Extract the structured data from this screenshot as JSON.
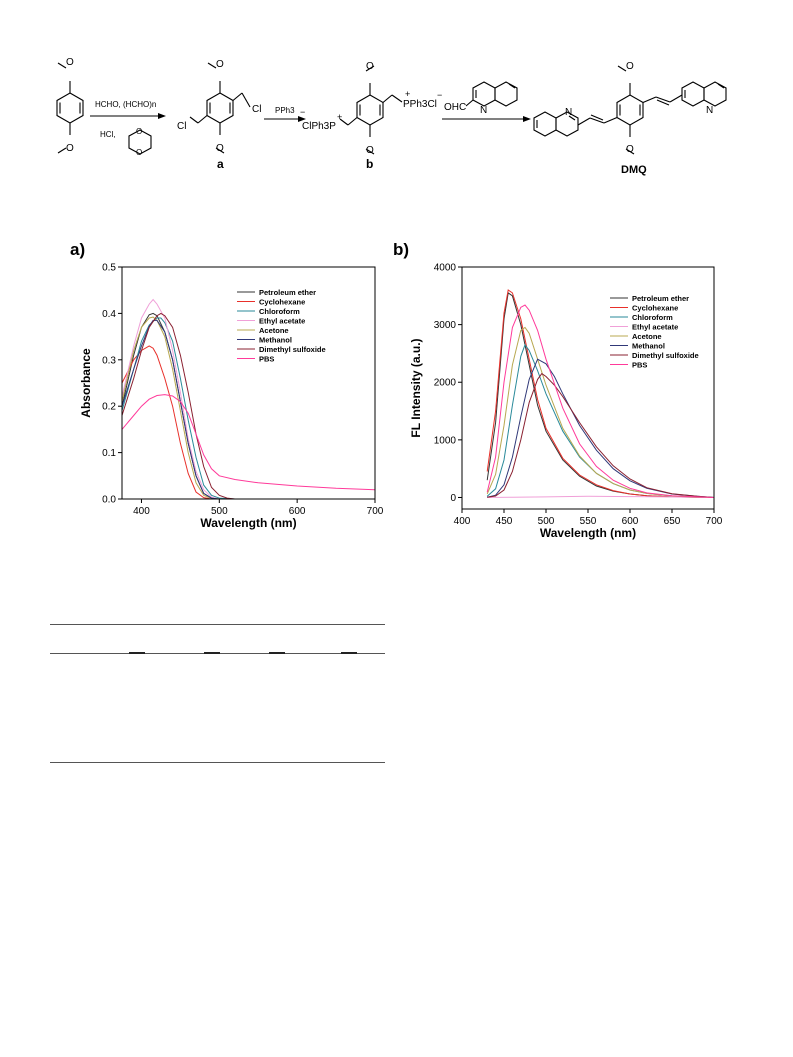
{
  "scheme": {
    "step1_reagent_top": "HCHO, (HCHO)n",
    "step1_reagent_bottom": "HCl,",
    "step2_reagent": "PPh3",
    "compound_a_label": "a",
    "compound_b_label": "b",
    "product_label": "DMQ",
    "cl_label": "Cl",
    "o_label": "O",
    "n_label": "N",
    "ohc_label": "OHC",
    "b_left_group": "ClPh3P",
    "b_right_group": "PPh3Cl",
    "plus": "+",
    "minus": "−"
  },
  "figure_a_label": "a)",
  "figure_b_label": "b)",
  "colors": {
    "petroleum_ether": "#333333",
    "cyclohexane": "#e8302a",
    "chloroform": "#2a8a9a",
    "ethyl_acetate": "#f0a0d8",
    "acetone": "#b8a850",
    "methanol": "#303878",
    "dimethyl_sulfoxide": "#8a2030",
    "pbs": "#ff3a9a"
  },
  "chart_data": [
    {
      "type": "line",
      "xlabel": "Wavelength (nm)",
      "ylabel": "Absorbance",
      "xlim": [
        375,
        700
      ],
      "ylim": [
        0,
        0.5
      ],
      "xticks": [
        400,
        500,
        600,
        700
      ],
      "yticks": [
        0.0,
        0.1,
        0.2,
        0.3,
        0.4,
        0.5
      ],
      "ytick_labels": [
        "0.0",
        "0.1",
        "0.2",
        "0.3",
        "0.4",
        "0.5"
      ],
      "legend_placement": "top-right",
      "series": [
        {
          "name": "Petroleum ether",
          "color_key": "petroleum_ether",
          "x": [
            375,
            390,
            400,
            410,
            415,
            420,
            430,
            440,
            450,
            460,
            470,
            480,
            490,
            500,
            520,
            700
          ],
          "y": [
            0.2,
            0.31,
            0.37,
            0.397,
            0.4,
            0.395,
            0.36,
            0.3,
            0.21,
            0.12,
            0.05,
            0.012,
            0.002,
            0.0,
            0.0,
            0.0
          ]
        },
        {
          "name": "Cyclohexane",
          "color_key": "cyclohexane",
          "x": [
            375,
            390,
            400,
            410,
            415,
            420,
            430,
            440,
            450,
            460,
            470,
            480,
            490,
            500,
            520,
            700
          ],
          "y": [
            0.25,
            0.3,
            0.32,
            0.33,
            0.325,
            0.31,
            0.26,
            0.2,
            0.12,
            0.055,
            0.015,
            0.003,
            0.0,
            0.0,
            0.0,
            0.0
          ]
        },
        {
          "name": "Chloroform",
          "color_key": "chloroform",
          "x": [
            375,
            390,
            400,
            410,
            420,
            425,
            430,
            440,
            450,
            460,
            470,
            480,
            490,
            500,
            520,
            700
          ],
          "y": [
            0.19,
            0.28,
            0.34,
            0.375,
            0.39,
            0.39,
            0.38,
            0.34,
            0.26,
            0.17,
            0.09,
            0.03,
            0.008,
            0.002,
            0.0,
            0.0
          ]
        },
        {
          "name": "Ethyl acetate",
          "color_key": "ethyl_acetate",
          "x": [
            375,
            390,
            400,
            410,
            415,
            420,
            430,
            440,
            450,
            460,
            470,
            480,
            490,
            500,
            520,
            700
          ],
          "y": [
            0.22,
            0.33,
            0.39,
            0.42,
            0.43,
            0.42,
            0.39,
            0.32,
            0.23,
            0.13,
            0.06,
            0.02,
            0.004,
            0.0,
            0.0,
            0.0
          ]
        },
        {
          "name": "Acetone",
          "color_key": "acetone",
          "x": [
            375,
            390,
            400,
            410,
            415,
            420,
            430,
            440,
            450,
            460,
            470,
            480,
            490,
            500,
            520,
            700
          ],
          "y": [
            0.21,
            0.32,
            0.37,
            0.39,
            0.392,
            0.385,
            0.35,
            0.28,
            0.19,
            0.1,
            0.035,
            0.008,
            0.001,
            0.0,
            0.0,
            0.0
          ]
        },
        {
          "name": "Methanol",
          "color_key": "methanol",
          "x": [
            375,
            390,
            400,
            410,
            415,
            420,
            430,
            440,
            450,
            460,
            470,
            480,
            490,
            500,
            520,
            700
          ],
          "y": [
            0.2,
            0.28,
            0.33,
            0.372,
            0.385,
            0.385,
            0.36,
            0.3,
            0.21,
            0.12,
            0.05,
            0.012,
            0.002,
            0.0,
            0.0,
            0.0
          ]
        },
        {
          "name": "Dimethyl sulfoxide",
          "color_key": "dimethyl_sulfoxide",
          "x": [
            375,
            390,
            400,
            410,
            420,
            425,
            430,
            440,
            450,
            460,
            470,
            480,
            490,
            500,
            510,
            520,
            700
          ],
          "y": [
            0.18,
            0.26,
            0.32,
            0.37,
            0.395,
            0.4,
            0.395,
            0.37,
            0.31,
            0.23,
            0.14,
            0.07,
            0.025,
            0.008,
            0.002,
            0.0,
            0.0
          ]
        },
        {
          "name": "PBS",
          "color_key": "pbs",
          "x": [
            375,
            390,
            400,
            410,
            420,
            430,
            440,
            450,
            460,
            470,
            480,
            490,
            500,
            520,
            550,
            600,
            650,
            700
          ],
          "y": [
            0.15,
            0.18,
            0.2,
            0.215,
            0.223,
            0.225,
            0.222,
            0.21,
            0.185,
            0.14,
            0.095,
            0.065,
            0.05,
            0.042,
            0.035,
            0.028,
            0.023,
            0.02
          ]
        }
      ]
    },
    {
      "type": "line",
      "xlabel": "Wavelength (nm)",
      "ylabel": "FL Intensity (a.u.)",
      "xlim": [
        400,
        700
      ],
      "ylim": [
        -200,
        4000
      ],
      "xticks": [
        400,
        450,
        500,
        550,
        600,
        650,
        700
      ],
      "yticks": [
        0,
        1000,
        2000,
        3000,
        4000
      ],
      "legend_placement": "top-right",
      "series": [
        {
          "name": "Petroleum ether",
          "color_key": "petroleum_ether",
          "x": [
            430,
            440,
            450,
            455,
            460,
            470,
            480,
            490,
            500,
            520,
            540,
            560,
            580,
            600,
            620,
            650,
            680,
            700
          ],
          "y": [
            300,
            1300,
            3100,
            3550,
            3500,
            3000,
            2300,
            1600,
            1150,
            650,
            370,
            200,
            110,
            60,
            30,
            10,
            5,
            0
          ]
        },
        {
          "name": "Cyclohexane",
          "color_key": "cyclohexane",
          "x": [
            430,
            440,
            450,
            455,
            460,
            470,
            480,
            490,
            500,
            520,
            540,
            560,
            580,
            600,
            620,
            650,
            680,
            700
          ],
          "y": [
            450,
            1500,
            3200,
            3600,
            3550,
            3100,
            2400,
            1700,
            1200,
            680,
            390,
            220,
            120,
            60,
            30,
            10,
            5,
            0
          ]
        },
        {
          "name": "Chloroform",
          "color_key": "chloroform",
          "x": [
            430,
            440,
            450,
            460,
            470,
            475,
            480,
            490,
            500,
            520,
            540,
            560,
            580,
            600,
            620,
            650,
            680,
            700
          ],
          "y": [
            20,
            150,
            650,
            1600,
            2450,
            2650,
            2550,
            2200,
            1800,
            1150,
            700,
            420,
            240,
            130,
            70,
            25,
            8,
            0
          ]
        },
        {
          "name": "Ethyl acetate",
          "color_key": "ethyl_acetate",
          "x": [
            430,
            460,
            500,
            550,
            600,
            650,
            700
          ],
          "y": [
            0,
            5,
            10,
            20,
            15,
            8,
            0
          ]
        },
        {
          "name": "Acetone",
          "color_key": "acetone",
          "x": [
            430,
            440,
            450,
            460,
            470,
            475,
            480,
            490,
            500,
            520,
            540,
            560,
            580,
            600,
            620,
            650,
            680,
            700
          ],
          "y": [
            60,
            400,
            1250,
            2300,
            2900,
            2950,
            2850,
            2400,
            1950,
            1200,
            720,
            420,
            240,
            130,
            70,
            25,
            8,
            0
          ]
        },
        {
          "name": "Methanol",
          "color_key": "methanol",
          "x": [
            430,
            440,
            450,
            460,
            470,
            480,
            490,
            500,
            510,
            520,
            540,
            560,
            580,
            600,
            620,
            650,
            680,
            700
          ],
          "y": [
            5,
            40,
            220,
            700,
            1400,
            2050,
            2400,
            2320,
            2100,
            1800,
            1250,
            820,
            500,
            290,
            160,
            60,
            20,
            0
          ]
        },
        {
          "name": "Dimethyl sulfoxide",
          "color_key": "dimethyl_sulfoxide",
          "x": [
            430,
            440,
            450,
            460,
            470,
            480,
            490,
            495,
            500,
            510,
            520,
            540,
            560,
            580,
            600,
            620,
            650,
            680,
            700
          ],
          "y": [
            3,
            25,
            130,
            450,
            1000,
            1650,
            2050,
            2150,
            2100,
            1950,
            1750,
            1300,
            880,
            550,
            320,
            170,
            65,
            20,
            0
          ]
        },
        {
          "name": "PBS",
          "color_key": "pbs",
          "x": [
            430,
            440,
            450,
            460,
            470,
            475,
            480,
            490,
            500,
            520,
            540,
            560,
            580,
            600,
            620,
            650,
            680,
            700
          ],
          "y": [
            90,
            700,
            2000,
            2950,
            3300,
            3340,
            3250,
            2900,
            2400,
            1550,
            930,
            540,
            300,
            160,
            80,
            30,
            10,
            0
          ]
        }
      ]
    }
  ]
}
